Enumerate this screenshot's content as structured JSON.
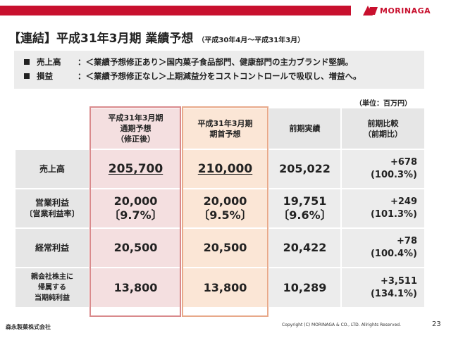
{
  "brand": {
    "name": "MORINAGA",
    "color": "#c8102e"
  },
  "title": {
    "main": "【連結】平成31年3月期 業績予想",
    "period": "（平成30年4月〜平成31年3月）"
  },
  "notes": [
    {
      "label": "売上高",
      "text": "：＜業績予想修正あり＞国内菓子食品部門、健康部門の主力ブランド堅調。"
    },
    {
      "label": "損益",
      "text": "：＜業績予想修正なし＞上期減益分をコストコントロールで吸収し、増益へ。"
    }
  ],
  "unit": "（単位：百万円）",
  "table": {
    "headers": {
      "col1": [
        "平成31年3月期",
        "通期予想",
        "（修正後）"
      ],
      "col2": [
        "平成31年3月期",
        "期首予想"
      ],
      "col3": "前期実績",
      "col4": [
        "前期比較",
        "（前期比）"
      ]
    },
    "rows": [
      {
        "label": [
          "売上高"
        ],
        "revised": "205,700",
        "revised_pct": "",
        "initial": "210,000",
        "initial_pct": "",
        "prior": "205,022",
        "prior_pct": "",
        "diff": "+678",
        "ratio": "(100.3%)"
      },
      {
        "label": [
          "営業利益",
          "〔営業利益率〕"
        ],
        "revised": "20,000",
        "revised_pct": "〔9.7%〕",
        "initial": "20,000",
        "initial_pct": "〔9.5%〕",
        "prior": "19,751",
        "prior_pct": "〔9.6%〕",
        "diff": "+249",
        "ratio": "(101.3%)"
      },
      {
        "label": [
          "経常利益"
        ],
        "revised": "20,500",
        "revised_pct": "",
        "initial": "20,500",
        "initial_pct": "",
        "prior": "20,422",
        "prior_pct": "",
        "diff": "+78",
        "ratio": "(100.4%)"
      },
      {
        "label": [
          "親会社株主に",
          "帰属する",
          "当期純利益"
        ],
        "revised": "13,800",
        "revised_pct": "",
        "initial": "13,800",
        "initial_pct": "",
        "prior": "10,289",
        "prior_pct": "",
        "diff": "+3,511",
        "ratio": "(134.1%)"
      }
    ]
  },
  "footer": {
    "company": "森永製菓株式会社",
    "copyright": "Copyright (C) MORINAGA & CO., LTD. Allrights Reserved.",
    "page": "23"
  }
}
